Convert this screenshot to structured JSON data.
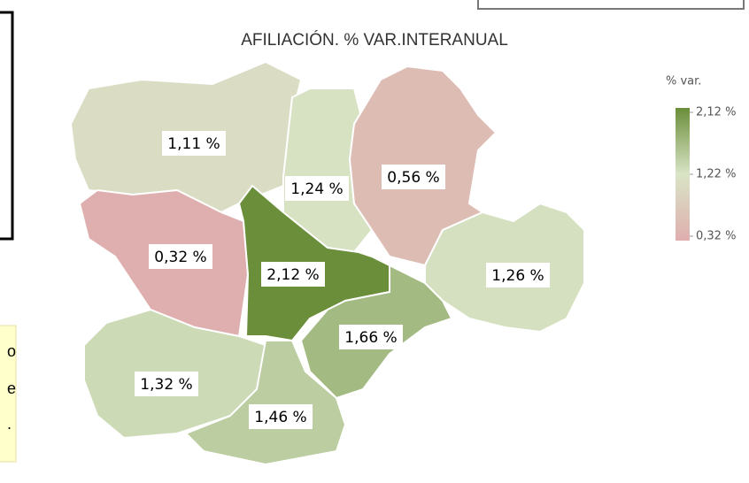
{
  "chart_data": {
    "type": "choropleth",
    "title": "AFILIACIÓN. % VAR.INTERANUAL",
    "values": [
      1.11,
      1.24,
      0.56,
      0.32,
      2.12,
      1.26,
      1.66,
      1.32,
      1.46
    ],
    "value_labels": [
      "1,11 %",
      "1,24 %",
      "0,56 %",
      "0,32 %",
      "2,12 %",
      "1,26 %",
      "1,66 %",
      "1,32 %",
      "1,46 %"
    ],
    "legend_title": "% var.",
    "colorbar_ticks": [
      {
        "value": 2.12,
        "label": "2,12 %"
      },
      {
        "value": 1.22,
        "label": "1,22 %"
      },
      {
        "value": 0.32,
        "label": "0,32 %"
      }
    ],
    "colors": [
      "#6b8e3a",
      "#d9e4c6",
      "#dfaeae"
    ]
  },
  "side_note": [
    "o",
    "e",
    "."
  ]
}
